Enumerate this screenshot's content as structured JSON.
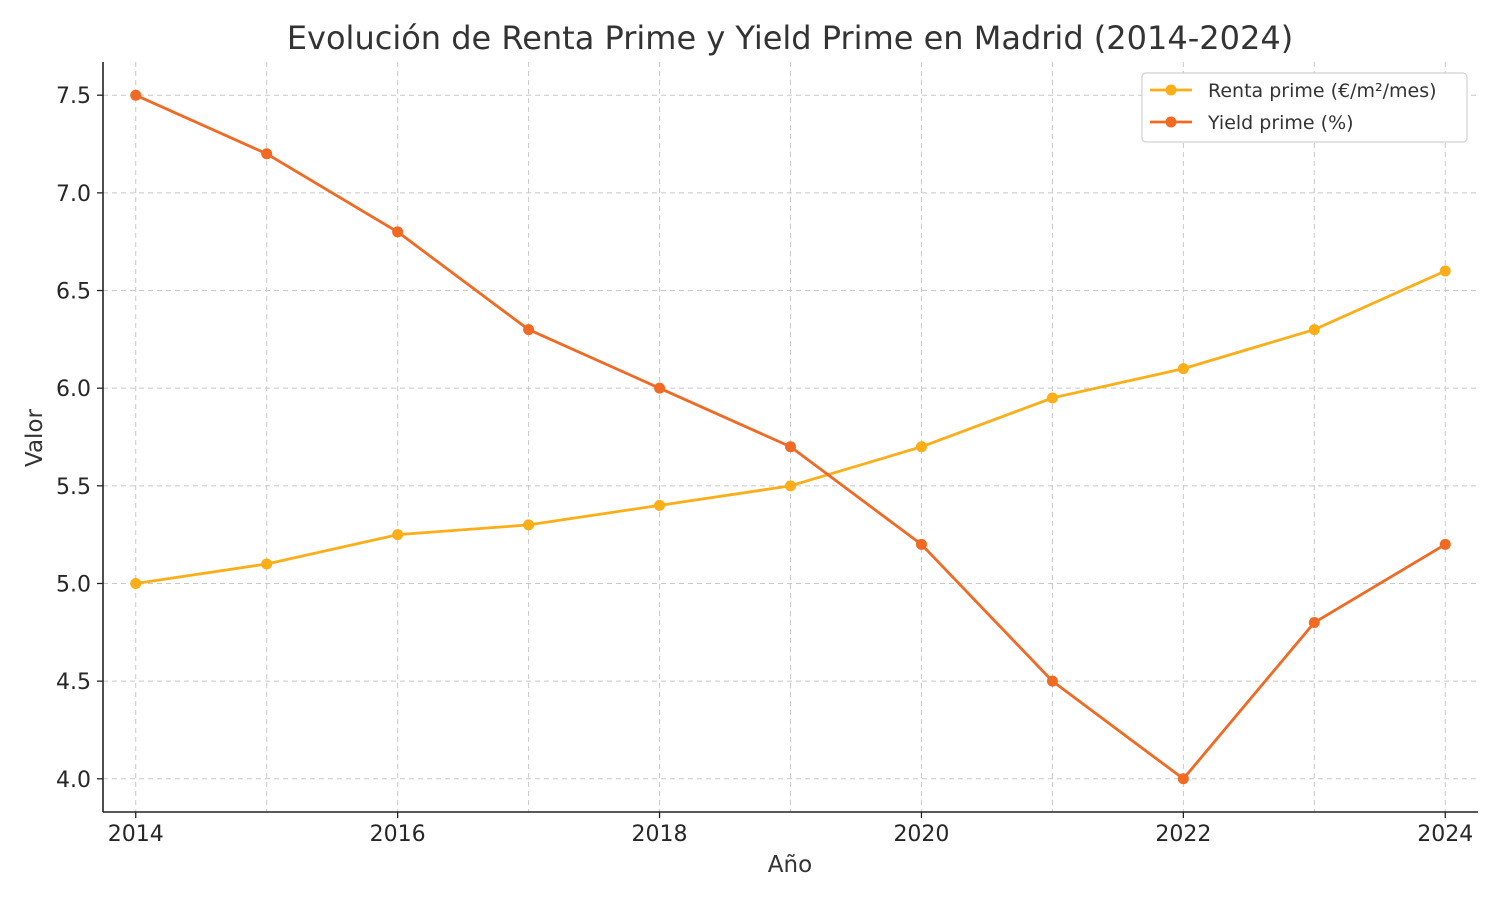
{
  "chart_data": {
    "type": "line",
    "title": "Evolución de Renta Prime y Yield Prime en Madrid (2014-2024)",
    "xlabel": "Año",
    "ylabel": "Valor",
    "x": [
      2014,
      2015,
      2016,
      2017,
      2018,
      2019,
      2020,
      2021,
      2022,
      2023,
      2024
    ],
    "xticks": [
      2014,
      2016,
      2018,
      2020,
      2022,
      2024
    ],
    "yticks": [
      4.0,
      4.5,
      5.0,
      5.5,
      6.0,
      6.5,
      7.0,
      7.5
    ],
    "xlim": [
      2013.75,
      2024.25
    ],
    "ylim": [
      3.83,
      7.67
    ],
    "grid": true,
    "legend_position": "top-right",
    "series": [
      {
        "name": "Renta prime (€/m²/mes)",
        "color": "#FBAE17",
        "values": [
          5.0,
          5.1,
          5.25,
          5.3,
          5.4,
          5.5,
          5.7,
          5.95,
          6.1,
          6.3,
          6.6
        ]
      },
      {
        "name": "Yield prime (%)",
        "color": "#F06A24",
        "values": [
          7.5,
          7.2,
          6.8,
          6.3,
          6.0,
          5.7,
          5.2,
          4.5,
          4.0,
          4.8,
          5.2
        ]
      }
    ]
  }
}
